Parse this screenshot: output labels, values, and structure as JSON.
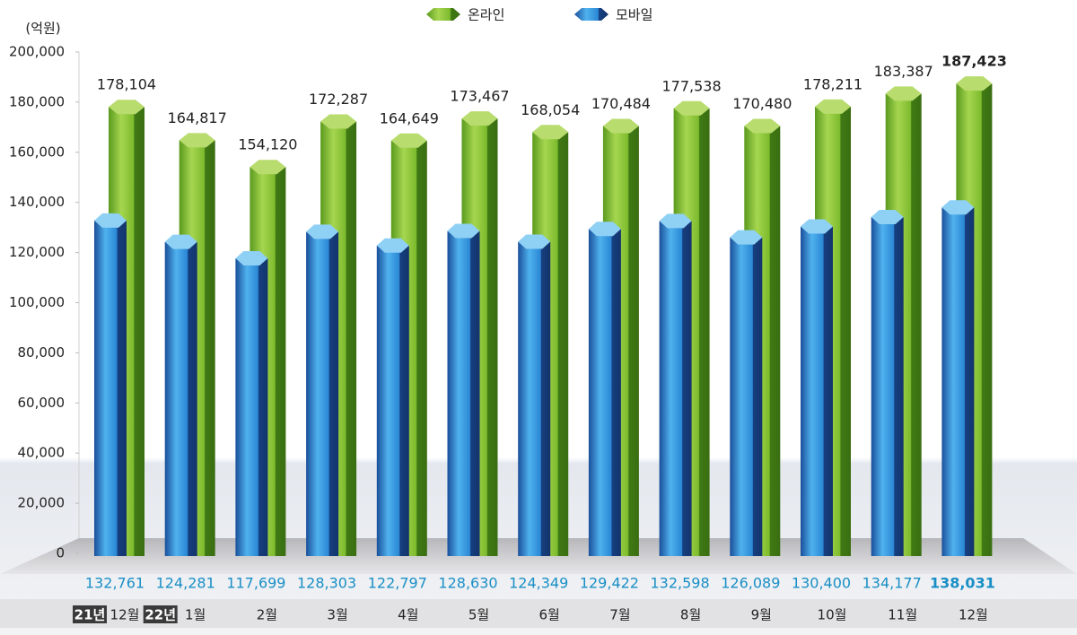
{
  "chart_data": {
    "type": "bar3d",
    "y_axis_label": "(억원)",
    "categories": [
      "12월",
      "1월",
      "2월",
      "3월",
      "4월",
      "5월",
      "6월",
      "7월",
      "8월",
      "9월",
      "10월",
      "11월",
      "12월"
    ],
    "year_markers": [
      "21년",
      "22년"
    ],
    "series": [
      {
        "name": "온라인",
        "color": "#8cc63f",
        "values": [
          178104,
          164817,
          154120,
          172287,
          164649,
          173467,
          168054,
          170484,
          177538,
          170480,
          178211,
          183387,
          187423
        ],
        "value_labels": [
          "178,104",
          "164,817",
          "154,120",
          "172,287",
          "164,649",
          "173,467",
          "168,054",
          "170,484",
          "177,538",
          "170,480",
          "178,211",
          "183,387",
          "187,423"
        ]
      },
      {
        "name": "모바일",
        "color": "#3a9be0",
        "values": [
          132761,
          124281,
          117699,
          128303,
          122797,
          128630,
          124349,
          129422,
          132598,
          126089,
          130400,
          134177,
          138031
        ],
        "value_labels": [
          "132,761",
          "124,281",
          "117,699",
          "128,303",
          "122,797",
          "128,630",
          "124,349",
          "129,422",
          "132,598",
          "126,089",
          "130,400",
          "134,177",
          "138,031"
        ]
      }
    ],
    "ylim": [
      0,
      200000
    ],
    "yticks": [
      0,
      {
        "value": 20000,
        "label": "20,000"
      },
      {
        "value": 40000,
        "label": "40,000"
      },
      {
        "value": 60000,
        "label": "60,000"
      },
      {
        "value": 80000,
        "label": "80,000"
      },
      {
        "value": 100000,
        "label": "100,000"
      },
      {
        "value": 120000,
        "label": "120,000"
      },
      {
        "value": 140000,
        "label": "140,000"
      },
      {
        "value": 160000,
        "label": "160,000"
      },
      {
        "value": 180000,
        "label": "180,000"
      },
      {
        "value": 200000,
        "label": "200,000"
      }
    ],
    "legend": "top",
    "grid": false
  }
}
